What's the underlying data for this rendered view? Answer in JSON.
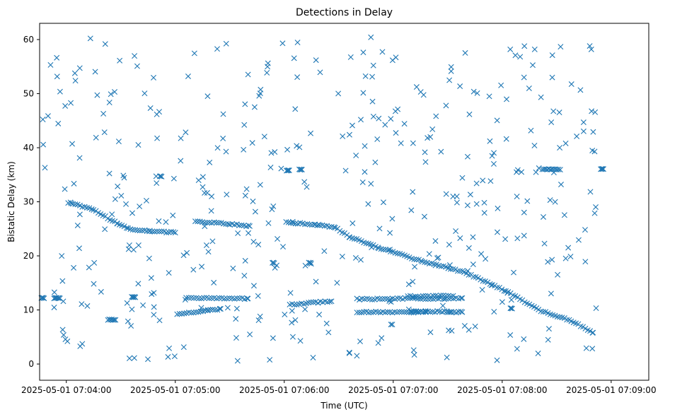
{
  "chart_data": {
    "type": "scatter",
    "title": "Detections in Delay",
    "xlabel": "Time (UTC)",
    "ylabel": "Bistatic Delay (km)",
    "x_unit": "seconds since 2025-05-01 07:03:30",
    "xlim": [
      15.3,
      350.7
    ],
    "ylim": [
      -3.0,
      63.0
    ],
    "x_ticks": [
      {
        "value": 30,
        "label": "2025-05-01 07:04:00"
      },
      {
        "value": 90,
        "label": "2025-05-01 07:05:00"
      },
      {
        "value": 150,
        "label": "2025-05-01 07:06:00"
      },
      {
        "value": 210,
        "label": "2025-05-01 07:07:00"
      },
      {
        "value": 270,
        "label": "2025-05-01 07:08:00"
      },
      {
        "value": 330,
        "label": "2025-05-01 07:09:00"
      }
    ],
    "y_ticks": [
      {
        "value": 0,
        "label": "0"
      },
      {
        "value": 10,
        "label": "10"
      },
      {
        "value": 20,
        "label": "20"
      },
      {
        "value": 30,
        "label": "30"
      },
      {
        "value": 40,
        "label": "40"
      },
      {
        "value": 50,
        "label": "50"
      },
      {
        "value": 60,
        "label": "60"
      }
    ],
    "marker": "x",
    "color": "#1f77b4",
    "grid": false,
    "legend": "none",
    "tracks": [
      {
        "name": "track-main-descending",
        "step": 1.3,
        "segments": [
          [
            [
              31,
              29.9
            ],
            [
              45,
              28.5
            ],
            [
              58,
              26.0
            ],
            [
              64,
              25.0
            ],
            [
              76,
              24.6
            ],
            [
              90,
              24.3
            ]
          ],
          [
            [
              101,
              26.4
            ],
            [
              120,
              25.9
            ],
            [
              131,
              25.5
            ]
          ],
          [
            [
              151,
              26.2
            ],
            [
              167,
              25.8
            ],
            [
              178,
              25.3
            ],
            [
              186,
              23.5
            ],
            [
              202,
              21.5
            ],
            [
              226,
              19.0
            ],
            [
              249,
              17.0
            ],
            [
              272,
              13.5
            ],
            [
              290,
              10.0
            ],
            [
              308,
              8.0
            ],
            [
              320,
              5.8
            ]
          ]
        ]
      },
      {
        "name": "track-lower-rising",
        "step": 1.3,
        "segments": [
          [
            [
              91,
              9.2
            ],
            [
              108,
              9.9
            ],
            [
              115,
              10.2
            ]
          ],
          [
            [
              153,
              11.0
            ],
            [
              176,
              11.6
            ]
          ],
          [
            [
              190,
              9.6
            ],
            [
              228,
              9.6
            ]
          ],
          [
            [
              220,
              9.8
            ],
            [
              248,
              9.6
            ]
          ]
        ]
      },
      {
        "name": "track-level-12",
        "step": 1.4,
        "segments": [
          [
            [
              96,
              12.2
            ],
            [
              130,
              12.1
            ]
          ],
          [
            [
              190,
              12.0
            ],
            [
              248,
              12.2
            ]
          ],
          [
            [
              218,
              12.5
            ],
            [
              243,
              12.6
            ]
          ]
        ]
      }
    ],
    "clusters": [
      {
        "x": 17,
        "y": 12.2,
        "n": 4,
        "dx": 0.5
      },
      {
        "x": 24,
        "y": 12.2,
        "n": 4,
        "dx": 0.5
      },
      {
        "x": 26,
        "y": 12.2,
        "n": 3,
        "dx": 0.5
      },
      {
        "x": 55,
        "y": 8.2,
        "n": 7,
        "dx": 0.7
      },
      {
        "x": 67,
        "y": 12.4,
        "n": 5,
        "dx": 0.5
      },
      {
        "x": 82,
        "y": 34.7,
        "n": 3,
        "dx": 0.5
      },
      {
        "x": 152,
        "y": 35.8,
        "n": 4,
        "dx": 0.5
      },
      {
        "x": 159,
        "y": 36.0,
        "n": 4,
        "dx": 0.5
      },
      {
        "x": 164,
        "y": 18.7,
        "n": 3,
        "dx": 0.5
      },
      {
        "x": 144,
        "y": 18.7,
        "n": 3,
        "dx": 0.5
      },
      {
        "x": 275,
        "y": 10.3,
        "n": 3,
        "dx": 0.5
      },
      {
        "x": 297,
        "y": 36.0,
        "n": 12,
        "dx": 0.9
      },
      {
        "x": 325,
        "y": 36.0,
        "n": 4,
        "dx": 0.5
      }
    ],
    "noise": {
      "count": 430,
      "x_range": [
        16,
        322
      ],
      "y_range": [
        0.5,
        60.5
      ],
      "seed": 2025
    }
  }
}
